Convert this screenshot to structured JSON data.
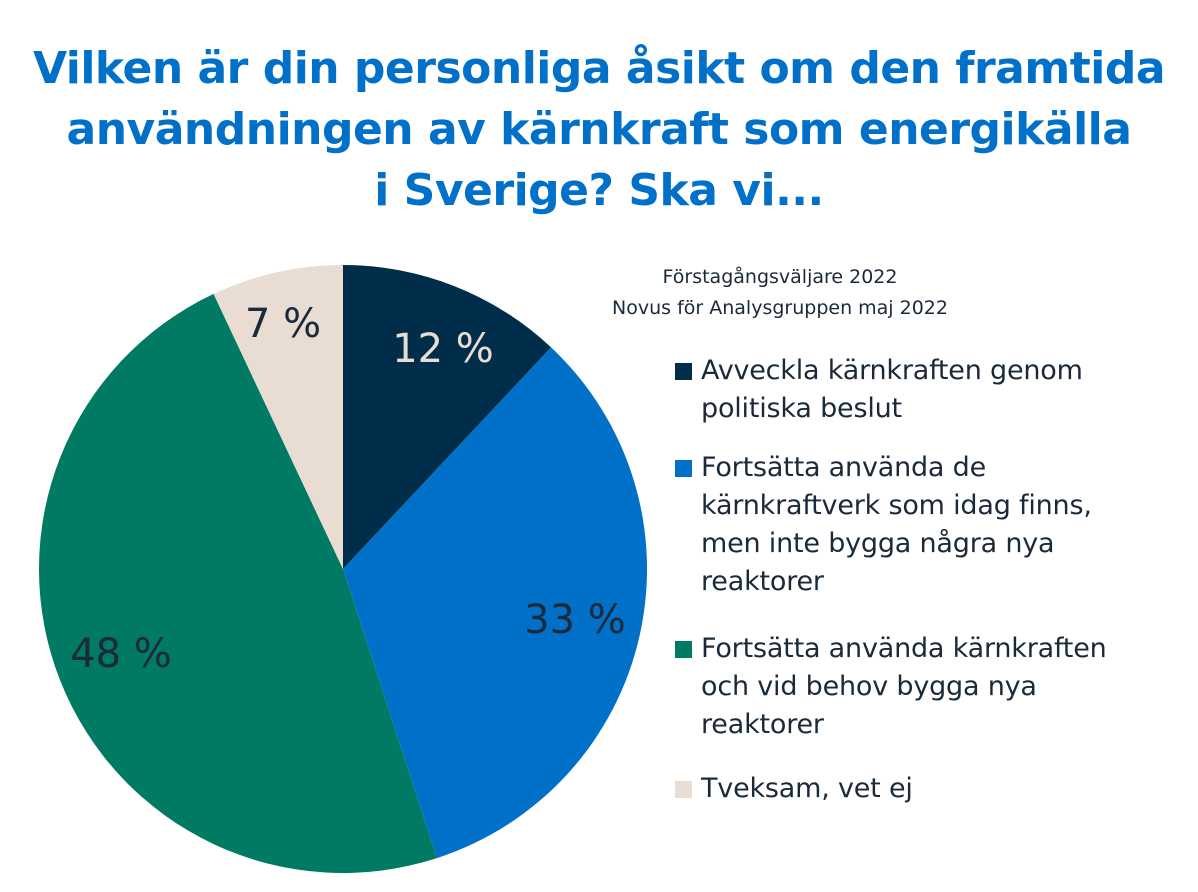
{
  "chart_data": {
    "type": "pie",
    "title_lines": [
      "Vilken är din personliga åsikt om den framtida",
      "användningen av kärnkraft som energikälla",
      "i Sverige? Ska vi..."
    ],
    "subtitle_lines": [
      "Förstagångsväljare 2022",
      "Novus för Analysgruppen maj 2022"
    ],
    "slices": [
      {
        "legend_lines": [
          "Avveckla kärnkraften genom",
          "politiska beslut"
        ],
        "value": 12,
        "label": "12 %",
        "color": "#002d4a",
        "label_color": "#e9ddd3"
      },
      {
        "legend_lines": [
          "Fortsätta använda de",
          "kärnkraftverk som idag finns,",
          "men inte bygga några nya",
          "reaktorer"
        ],
        "value": 33,
        "label": "33 %",
        "color": "#0070c8",
        "label_color": "#1a2a3a"
      },
      {
        "legend_lines": [
          "Fortsätta använda kärnkraften",
          "och vid behov bygga nya",
          "reaktorer"
        ],
        "value": 48,
        "label": "48 %",
        "color": "#007a62",
        "label_color": "#1a2a3a"
      },
      {
        "legend_lines": [
          "Tveksam, vet ej"
        ],
        "value": 7,
        "label": "7 %",
        "color": "#e9ddd3",
        "label_color": "#1a2a3a"
      }
    ],
    "start_angle": "12 o'clock",
    "direction": "clockwise",
    "legend_position": "right"
  }
}
